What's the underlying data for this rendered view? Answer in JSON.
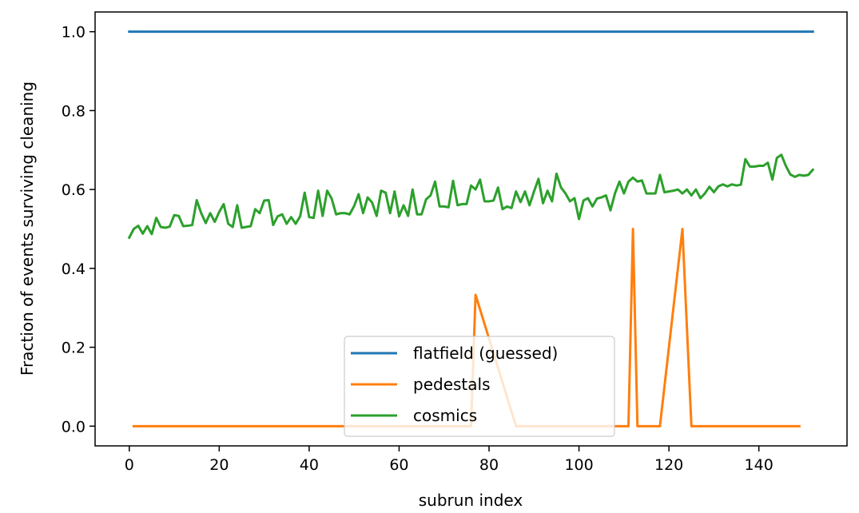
{
  "chart_data": {
    "type": "line",
    "title": "",
    "xlabel": "subrun index",
    "ylabel": "Fraction of events surviving cleaning",
    "xlim": [
      -7.6,
      159.6
    ],
    "ylim": [
      -0.05,
      1.05
    ],
    "xticks": [
      0,
      20,
      40,
      60,
      80,
      100,
      120,
      140
    ],
    "yticks": [
      0.0,
      0.2,
      0.4,
      0.6,
      0.8,
      1.0
    ],
    "xtick_labels": [
      "0",
      "20",
      "40",
      "60",
      "80",
      "100",
      "120",
      "140"
    ],
    "ytick_labels": [
      "0.0",
      "0.2",
      "0.4",
      "0.6",
      "0.8",
      "1.0"
    ],
    "grid": false,
    "legend_position": "lower-center",
    "series": [
      {
        "name": "flatfield (guessed)",
        "color": "#1f77b4",
        "x": [
          0,
          152
        ],
        "y": [
          1.0,
          1.0
        ]
      },
      {
        "name": "pedestals",
        "color": "#ff7f0e",
        "x": [
          1,
          76,
          77,
          86,
          111,
          112,
          113,
          118,
          123,
          125,
          149
        ],
        "y": [
          0.0,
          0.0,
          0.333,
          0.0,
          0.0,
          0.5,
          0.0,
          0.0,
          0.5,
          0.0,
          0.0
        ]
      },
      {
        "name": "cosmics",
        "color": "#2ca02c",
        "x": [
          0,
          1,
          2,
          3,
          4,
          5,
          6,
          7,
          8,
          9,
          10,
          11,
          12,
          13,
          14,
          15,
          16,
          17,
          18,
          19,
          20,
          21,
          22,
          23,
          24,
          25,
          26,
          27,
          28,
          29,
          30,
          31,
          32,
          33,
          34,
          35,
          36,
          37,
          38,
          39,
          40,
          41,
          42,
          43,
          44,
          45,
          46,
          47,
          48,
          49,
          50,
          51,
          52,
          53,
          54,
          55,
          56,
          57,
          58,
          59,
          60,
          61,
          62,
          63,
          64,
          65,
          66,
          67,
          68,
          69,
          70,
          71,
          72,
          73,
          74,
          75,
          76,
          77,
          78,
          79,
          80,
          81,
          82,
          83,
          84,
          85,
          86,
          87,
          88,
          89,
          90,
          91,
          92,
          93,
          94,
          95,
          96,
          97,
          98,
          99,
          100,
          101,
          102,
          103,
          104,
          105,
          106,
          107,
          108,
          109,
          110,
          111,
          112,
          113,
          114,
          115,
          116,
          117,
          118,
          119,
          120,
          121,
          122,
          123,
          124,
          125,
          126,
          127,
          128,
          129,
          130,
          131,
          132,
          133,
          134,
          135,
          136,
          137,
          138,
          139,
          140,
          141,
          142,
          143,
          144,
          145,
          146,
          147,
          148,
          149,
          150,
          151,
          152
        ],
        "y": [
          0.478,
          0.5,
          0.508,
          0.488,
          0.507,
          0.487,
          0.528,
          0.505,
          0.503,
          0.506,
          0.535,
          0.533,
          0.507,
          0.508,
          0.51,
          0.573,
          0.54,
          0.515,
          0.54,
          0.518,
          0.543,
          0.563,
          0.513,
          0.505,
          0.56,
          0.503,
          0.505,
          0.507,
          0.55,
          0.54,
          0.572,
          0.573,
          0.51,
          0.532,
          0.537,
          0.513,
          0.53,
          0.513,
          0.532,
          0.592,
          0.53,
          0.528,
          0.597,
          0.533,
          0.597,
          0.577,
          0.537,
          0.54,
          0.54,
          0.537,
          0.558,
          0.588,
          0.54,
          0.58,
          0.567,
          0.533,
          0.597,
          0.592,
          0.54,
          0.595,
          0.532,
          0.56,
          0.533,
          0.6,
          0.537,
          0.537,
          0.575,
          0.585,
          0.62,
          0.557,
          0.557,
          0.555,
          0.622,
          0.56,
          0.563,
          0.563,
          0.61,
          0.6,
          0.625,
          0.57,
          0.57,
          0.572,
          0.605,
          0.55,
          0.557,
          0.553,
          0.595,
          0.568,
          0.595,
          0.56,
          0.595,
          0.627,
          0.565,
          0.597,
          0.57,
          0.64,
          0.605,
          0.59,
          0.57,
          0.578,
          0.525,
          0.572,
          0.578,
          0.557,
          0.577,
          0.58,
          0.585,
          0.547,
          0.59,
          0.62,
          0.59,
          0.62,
          0.63,
          0.62,
          0.623,
          0.59,
          0.59,
          0.59,
          0.637,
          0.593,
          0.595,
          0.597,
          0.6,
          0.59,
          0.6,
          0.585,
          0.6,
          0.578,
          0.59,
          0.607,
          0.593,
          0.608,
          0.613,
          0.608,
          0.613,
          0.61,
          0.612,
          0.677,
          0.658,
          0.658,
          0.66,
          0.66,
          0.668,
          0.625,
          0.68,
          0.688,
          0.66,
          0.638,
          0.632,
          0.637,
          0.635,
          0.637,
          0.65
        ]
      }
    ]
  }
}
